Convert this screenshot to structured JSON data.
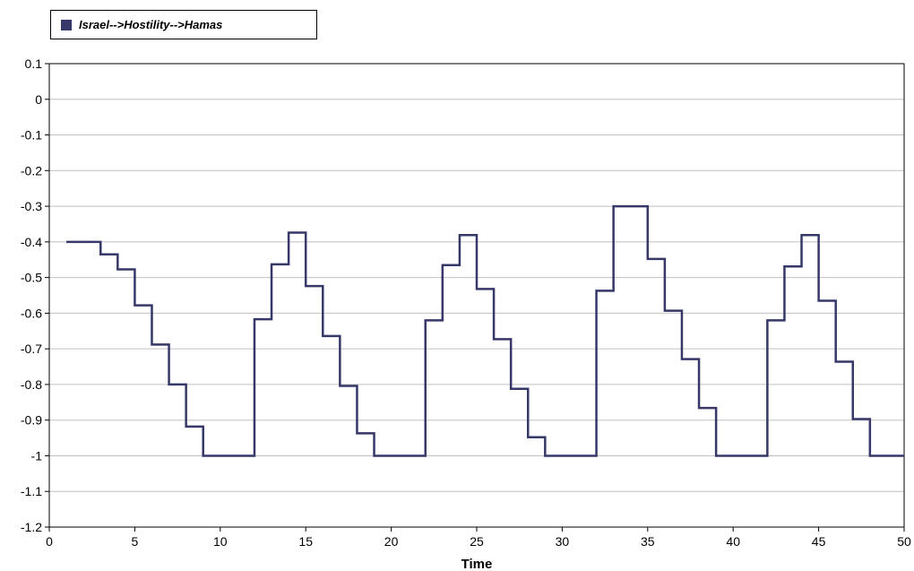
{
  "chart_data": {
    "type": "line",
    "step": true,
    "legend": {
      "placement": "top-left",
      "entries": [
        "Israel-->Hostility-->Hamas"
      ]
    },
    "xlabel": "Time",
    "ylabel": "",
    "xlim": [
      0,
      50
    ],
    "ylim": [
      -1.2,
      0.1
    ],
    "xticks": [
      0,
      5,
      10,
      15,
      20,
      25,
      30,
      35,
      40,
      45,
      50
    ],
    "xtick_labels": [
      "0",
      "5",
      "10",
      "15",
      "20",
      "25",
      "30",
      "35",
      "40",
      "45",
      "50"
    ],
    "yticks": [
      0.1,
      0,
      -0.1,
      -0.2,
      -0.3,
      -0.4,
      -0.5,
      -0.6,
      -0.7,
      -0.8,
      -0.9,
      -1,
      -1.1,
      -1.2
    ],
    "ytick_labels": [
      "0.1",
      "0",
      "-0.1",
      "-0.2",
      "-0.3",
      "-0.4",
      "-0.5",
      "-0.6",
      "-0.7",
      "-0.8",
      "-0.9",
      "-1",
      "-1.1",
      "-1.2"
    ],
    "grid": {
      "horizontal": true,
      "vertical": false
    },
    "series": [
      {
        "name": "Israel-->Hostility-->Hamas",
        "color": "#353868",
        "x": [
          1,
          2,
          3,
          4,
          5,
          6,
          7,
          8,
          9,
          10,
          11,
          12,
          13,
          14,
          15,
          16,
          17,
          18,
          19,
          20,
          21,
          22,
          23,
          24,
          25,
          26,
          27,
          28,
          29,
          30,
          31,
          32,
          33,
          34,
          35,
          36,
          37,
          38,
          39,
          40,
          41,
          42,
          43,
          44,
          45,
          46,
          47,
          48,
          49,
          50
        ],
        "values": [
          -0.4,
          -0.4,
          -0.435,
          -0.477,
          -0.578,
          -0.688,
          -0.8,
          -0.918,
          -1,
          -1,
          -1,
          -0.617,
          -0.463,
          -0.374,
          -0.524,
          -0.664,
          -0.804,
          -0.937,
          -1,
          -1,
          -1,
          -0.62,
          -0.465,
          -0.381,
          -0.532,
          -0.673,
          -0.812,
          -0.948,
          -1,
          -1,
          -1,
          -0.537,
          -0.3,
          -0.3,
          -0.448,
          -0.593,
          -0.729,
          -0.866,
          -1,
          -1,
          -1,
          -0.62,
          -0.469,
          -0.381,
          -0.565,
          -0.736,
          -0.897,
          -1,
          -1,
          -1
        ]
      }
    ]
  }
}
